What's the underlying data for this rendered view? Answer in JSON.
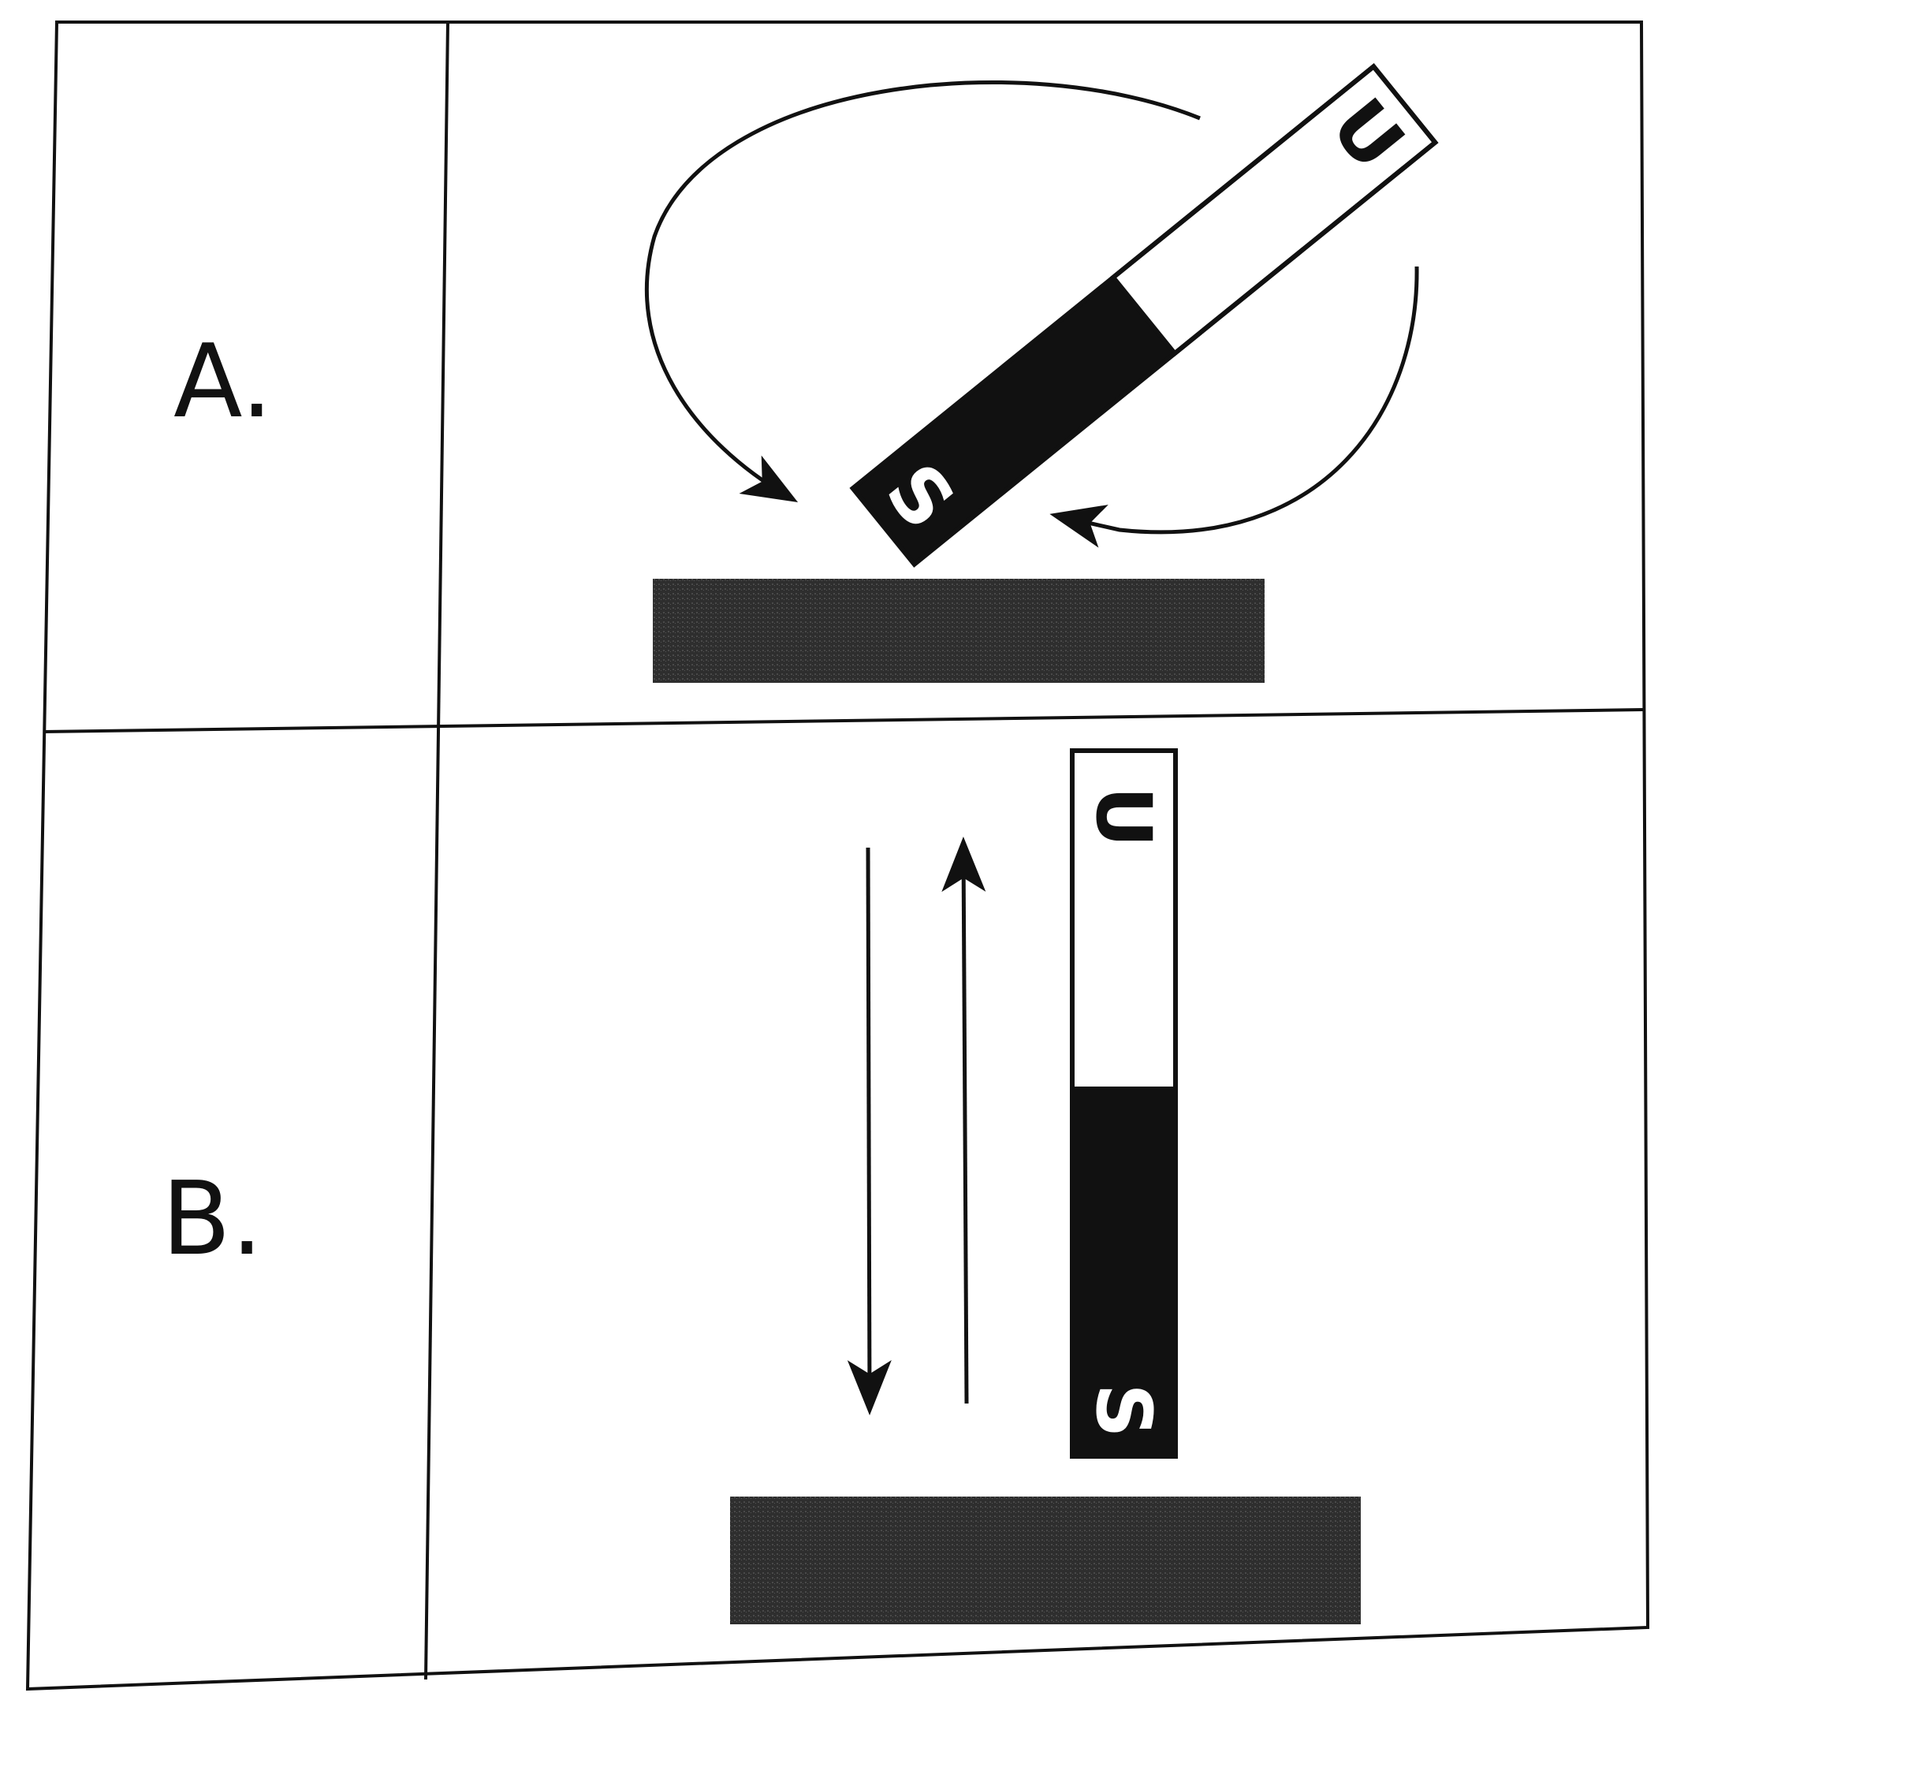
{
  "rows": [
    {
      "label": "A.",
      "magnet": {
        "top": "U",
        "bottom": "S"
      }
    },
    {
      "label": "B.",
      "magnet": {
        "top": "U",
        "bottom": "S"
      }
    }
  ]
}
